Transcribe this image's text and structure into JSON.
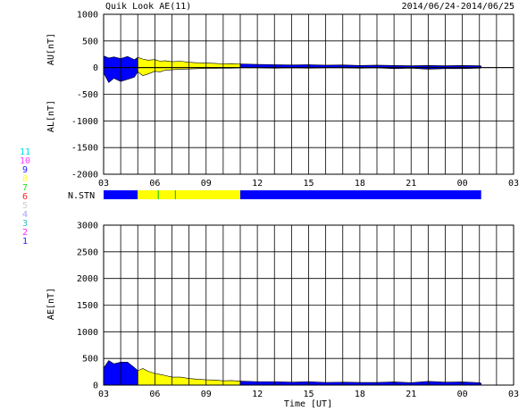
{
  "header": {
    "title": "Quik Look AE(11)",
    "date_range": "2014/06/24-2014/06/25"
  },
  "station_labels": [
    {
      "label": "11",
      "color": "#00e0e0"
    },
    {
      "label": "10",
      "color": "#ff40ff"
    },
    {
      "label": "9",
      "color": "#2020ff"
    },
    {
      "label": "8",
      "color": "#ffff30"
    },
    {
      "label": "7",
      "color": "#20e020"
    },
    {
      "label": "6",
      "color": "#ff2020"
    },
    {
      "label": "5",
      "color": "#d0d0d0"
    },
    {
      "label": "4",
      "color": "#a0a0ff"
    },
    {
      "label": "3",
      "color": "#30c0c0"
    },
    {
      "label": "2",
      "color": "#ff20ff"
    },
    {
      "label": "1",
      "color": "#2020ff"
    }
  ],
  "nstn_label": "N.STN",
  "colors": {
    "blue": "#0000ff",
    "yellow": "#ffff00",
    "green": "#00c000",
    "black": "#000000"
  },
  "chart_data": [
    {
      "type": "area",
      "name": "AU/AL",
      "ylabel_top": "AU[nT]",
      "ylabel_bottom": "AL[nT]",
      "ylim": [
        -2000,
        1000
      ],
      "yticks": [
        1000,
        500,
        0,
        -500,
        -1000,
        -1500,
        -2000
      ],
      "xlim": [
        3,
        27
      ],
      "xtick_labels": [
        "03",
        "06",
        "09",
        "12",
        "15",
        "18",
        "21",
        "00",
        "03"
      ],
      "grid": true,
      "segments": [
        {
          "x": [
            3.0,
            5.0
          ],
          "color": "blue"
        },
        {
          "x": [
            5.0,
            11.0
          ],
          "color": "yellow"
        },
        {
          "x": [
            11.0,
            25.1
          ],
          "color": "blue"
        }
      ],
      "series": [
        {
          "name": "AU",
          "x": [
            3.0,
            3.3,
            3.6,
            4.0,
            4.4,
            4.8,
            5.0,
            5.3,
            5.6,
            6.0,
            6.3,
            6.6,
            7.0,
            7.5,
            8.0,
            8.5,
            9.0,
            9.5,
            10.0,
            10.5,
            11.0,
            12.0,
            13.0,
            14.0,
            15.0,
            16.0,
            17.0,
            18.0,
            19.0,
            20.0,
            21.0,
            22.0,
            23.0,
            24.0,
            25.0,
            25.1
          ],
          "values": [
            220,
            180,
            200,
            170,
            210,
            150,
            190,
            160,
            140,
            150,
            120,
            130,
            110,
            120,
            100,
            90,
            85,
            80,
            70,
            75,
            70,
            60,
            55,
            50,
            55,
            45,
            50,
            40,
            45,
            40,
            35,
            40,
            35,
            40,
            35,
            30
          ]
        },
        {
          "name": "AL",
          "x": [
            3.0,
            3.3,
            3.6,
            4.0,
            4.4,
            4.8,
            5.0,
            5.3,
            5.6,
            6.0,
            6.3,
            6.6,
            7.0,
            7.5,
            8.0,
            8.5,
            9.0,
            9.5,
            10.0,
            10.5,
            11.0,
            12.0,
            13.0,
            14.0,
            15.0,
            16.0,
            17.0,
            18.0,
            19.0,
            20.0,
            21.0,
            22.0,
            23.0,
            24.0,
            25.0,
            25.1
          ],
          "values": [
            -100,
            -280,
            -200,
            -260,
            -220,
            -180,
            -80,
            -150,
            -120,
            -70,
            -80,
            -50,
            -40,
            -30,
            -25,
            -20,
            -15,
            -15,
            -10,
            -10,
            -5,
            -5,
            -10,
            -5,
            -10,
            -5,
            -5,
            -10,
            -5,
            -20,
            -10,
            -30,
            -20,
            -20,
            -10,
            -5
          ]
        }
      ]
    },
    {
      "type": "area",
      "name": "AE",
      "ylabel": "AE[nT]",
      "xlabel": "Time [UT]",
      "ylim": [
        0,
        3000
      ],
      "yticks": [
        3000,
        2500,
        2000,
        1500,
        1000,
        500,
        0
      ],
      "xlim": [
        3,
        27
      ],
      "xtick_labels": [
        "03",
        "06",
        "09",
        "12",
        "15",
        "18",
        "21",
        "00",
        "03"
      ],
      "grid": true,
      "segments": [
        {
          "x": [
            3.0,
            5.0
          ],
          "color": "blue"
        },
        {
          "x": [
            5.0,
            11.0
          ],
          "color": "yellow"
        },
        {
          "x": [
            11.0,
            25.1
          ],
          "color": "blue"
        }
      ],
      "series": [
        {
          "name": "AE",
          "x": [
            3.0,
            3.3,
            3.6,
            4.0,
            4.4,
            4.8,
            5.0,
            5.3,
            5.6,
            6.0,
            6.3,
            6.6,
            7.0,
            7.5,
            8.0,
            8.5,
            9.0,
            9.5,
            10.0,
            10.5,
            11.0,
            12.0,
            13.0,
            14.0,
            15.0,
            16.0,
            17.0,
            18.0,
            19.0,
            20.0,
            21.0,
            22.0,
            23.0,
            24.0,
            25.0,
            25.1
          ],
          "values": [
            320,
            460,
            400,
            430,
            430,
            330,
            270,
            310,
            260,
            220,
            200,
            180,
            150,
            150,
            125,
            110,
            100,
            95,
            80,
            85,
            75,
            65,
            65,
            55,
            65,
            50,
            55,
            50,
            50,
            60,
            45,
            70,
            55,
            60,
            45,
            35
          ]
        }
      ]
    }
  ]
}
